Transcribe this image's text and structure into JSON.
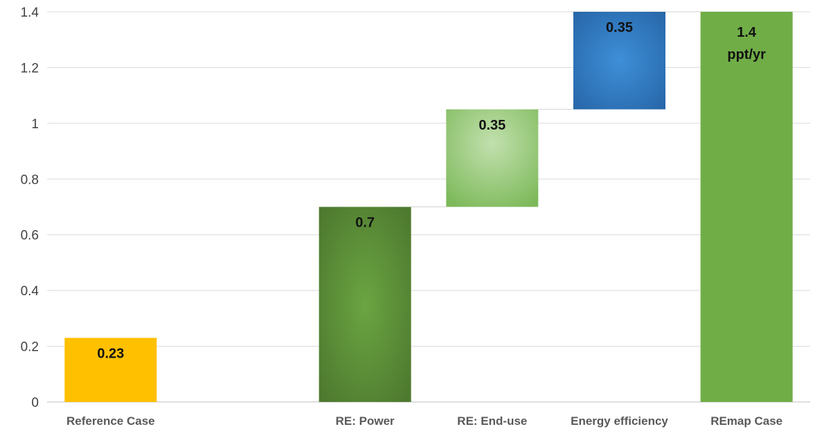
{
  "chart_data": {
    "type": "bar",
    "subtype": "waterfall",
    "categories": [
      "Reference Case",
      "",
      "RE: Power",
      "RE: End-use",
      "Energy efficiency",
      "REmap Case"
    ],
    "bars": [
      {
        "category": "Reference Case",
        "base": 0,
        "value": 0.23,
        "label": "0.23",
        "color": "#FFC000"
      },
      {
        "category": "RE: Power",
        "base": 0,
        "value": 0.7,
        "label": "0.7",
        "color": "#548235"
      },
      {
        "category": "RE: End-use",
        "base": 0.7,
        "value": 0.35,
        "label": "0.35",
        "color": "#8FC46A"
      },
      {
        "category": "Energy efficiency",
        "base": 1.05,
        "value": 0.35,
        "label": "0.35",
        "color": "#2E75B6"
      },
      {
        "category": "REmap Case",
        "base": 0,
        "value": 1.4,
        "label": "1.4",
        "label_line2": "ppt/yr",
        "color": "#70AD47"
      }
    ],
    "ylim": [
      0,
      1.4
    ],
    "y_ticks": [
      0,
      0.2,
      0.4,
      0.6,
      0.8,
      1,
      1.2,
      1.4
    ],
    "y_tick_labels": [
      "0",
      "0.2",
      "0.4",
      "0.6",
      "0.8",
      "1",
      "1.2",
      "1.4"
    ],
    "title": "",
    "xlabel": "",
    "ylabel": "",
    "grid": true,
    "legend": "none"
  }
}
